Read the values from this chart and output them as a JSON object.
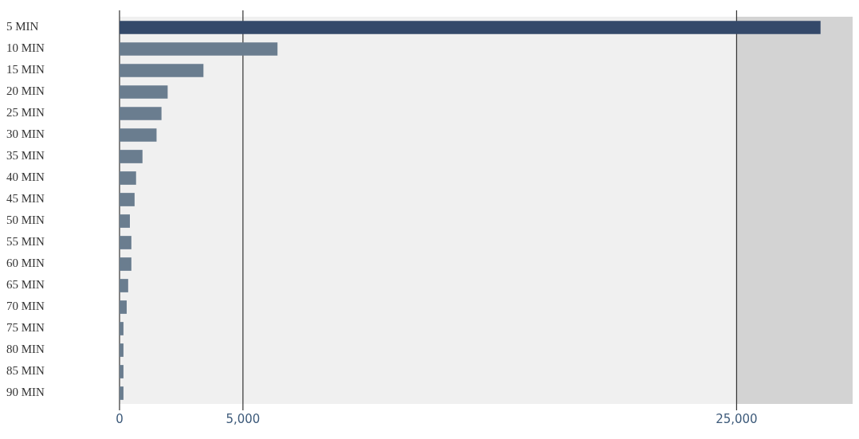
{
  "chart_data": {
    "type": "bar",
    "orientation": "horizontal",
    "categories": [
      "5 MIN",
      "10 MIN",
      "15 MIN",
      "20 MIN",
      "25 MIN",
      "30 MIN",
      "35 MIN",
      "40 MIN",
      "45 MIN",
      "50 MIN",
      "55 MIN",
      "60 MIN",
      "65 MIN",
      "70 MIN",
      "75 MIN",
      "80 MIN",
      "85 MIN",
      "90 MIN"
    ],
    "values": [
      28400,
      6400,
      3400,
      1950,
      1700,
      1500,
      930,
      670,
      610,
      420,
      480,
      480,
      350,
      290,
      160,
      160,
      160,
      160
    ],
    "colors": [
      "#34496a",
      "#6a7d8f",
      "#6a7d8f",
      "#6a7d8f",
      "#6a7d8f",
      "#6a7d8f",
      "#6a7d8f",
      "#6a7d8f",
      "#6a7d8f",
      "#6a7d8f",
      "#6a7d8f",
      "#6a7d8f",
      "#6a7d8f",
      "#6a7d8f",
      "#6a7d8f",
      "#6a7d8f",
      "#6a7d8f",
      "#6a7d8f"
    ],
    "xlim": [
      0,
      29700
    ],
    "xticks": [
      0,
      {
        "value": 5000,
        "label": "5,000"
      },
      {
        "value": 25000,
        "label": "25,000"
      }
    ],
    "bands": [
      {
        "axis": "x",
        "from": 25000,
        "to": 29700,
        "color": "#d3d3d3"
      }
    ],
    "grid": "x",
    "legend": false
  }
}
